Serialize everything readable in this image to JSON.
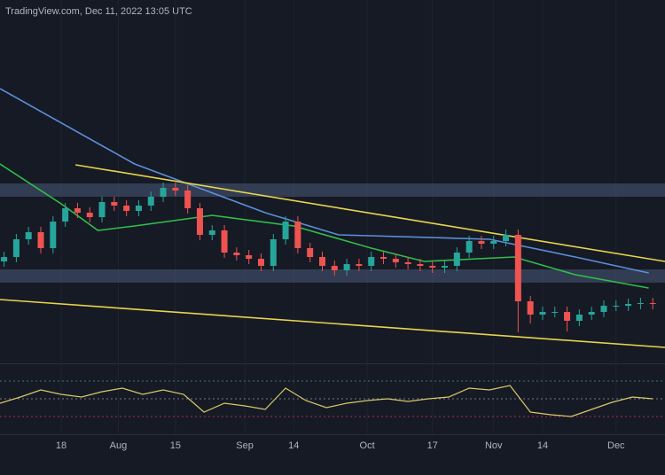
{
  "chart_data": [
    {
      "type": "candlestick",
      "title": "TradingView.com, Dec 11, 2022 13:05 UTC",
      "xlim": [
        0,
        163
      ],
      "ylim": [
        0,
        410
      ],
      "grid": true,
      "xticks": [
        {
          "value": 15,
          "label": "18"
        },
        {
          "value": 29,
          "label": "Aug"
        },
        {
          "value": 43,
          "label": "15"
        },
        {
          "value": 60,
          "label": "Sep"
        },
        {
          "value": 72,
          "label": "14"
        },
        {
          "value": 90,
          "label": "Oct"
        },
        {
          "value": 106,
          "label": "17"
        },
        {
          "value": 121,
          "label": "Nov"
        },
        {
          "value": 133,
          "label": "14"
        },
        {
          "value": 151,
          "label": "Dec"
        }
      ],
      "up_color": "#26a69a",
      "down_color": "#ef5350",
      "x": [
        1,
        4,
        7,
        10,
        13,
        16,
        19,
        22,
        25,
        28,
        31,
        34,
        37,
        40,
        43,
        46,
        49,
        52,
        55,
        58,
        61,
        64,
        67,
        70,
        73,
        76,
        79,
        82,
        85,
        88,
        91,
        94,
        97,
        100,
        103,
        106,
        109,
        112,
        115,
        118,
        121,
        124,
        127,
        130,
        133,
        136,
        139,
        142,
        145,
        148,
        151,
        154,
        157,
        160
      ],
      "open": [
        115,
        120,
        140,
        148,
        130,
        160,
        175,
        170,
        165,
        182,
        178,
        172,
        178,
        188,
        198,
        195,
        175,
        145,
        150,
        125,
        122,
        118,
        110,
        140,
        160,
        130,
        120,
        110,
        105,
        112,
        110,
        120,
        118,
        114,
        112,
        110,
        108,
        110,
        125,
        138,
        135,
        138,
        145,
        70,
        55,
        58,
        58,
        48,
        55,
        58,
        65,
        65,
        67,
        68
      ],
      "high": [
        126,
        146,
        154,
        154,
        166,
        181,
        181,
        176,
        188,
        188,
        184,
        184,
        194,
        204,
        204,
        201,
        181,
        156,
        156,
        131,
        128,
        124,
        146,
        166,
        166,
        136,
        126,
        116,
        118,
        118,
        126,
        126,
        124,
        120,
        118,
        116,
        116,
        131,
        144,
        144,
        144,
        151,
        151,
        76,
        64,
        64,
        64,
        61,
        64,
        71,
        71,
        73,
        74,
        74
      ],
      "low": [
        109,
        114,
        134,
        124,
        124,
        154,
        164,
        159,
        159,
        172,
        166,
        166,
        172,
        182,
        189,
        169,
        139,
        139,
        119,
        116,
        112,
        104,
        104,
        134,
        124,
        114,
        104,
        99,
        99,
        104,
        104,
        112,
        108,
        106,
        104,
        102,
        102,
        104,
        119,
        129,
        129,
        132,
        35,
        45,
        49,
        52,
        36,
        42,
        49,
        52,
        59,
        59,
        61,
        61
      ],
      "close": [
        120,
        140,
        148,
        130,
        160,
        175,
        170,
        165,
        182,
        178,
        172,
        178,
        188,
        198,
        195,
        175,
        145,
        150,
        125,
        122,
        118,
        110,
        140,
        160,
        130,
        120,
        110,
        105,
        112,
        110,
        120,
        118,
        114,
        112,
        110,
        108,
        110,
        125,
        138,
        135,
        138,
        145,
        70,
        55,
        58,
        58,
        48,
        55,
        58,
        65,
        65,
        67,
        68,
        67
      ],
      "lines": [
        {
          "color": "#5b8fd9",
          "x": [
            0,
            33,
            65,
            83,
            120,
            141,
            159
          ],
          "values": [
            310,
            225,
            170,
            145,
            140,
            120,
            102
          ]
        },
        {
          "color": "#2fbf4a",
          "x": [
            0,
            15,
            24,
            33,
            52,
            72,
            91,
            104,
            117,
            126,
            141,
            159
          ],
          "values": [
            225,
            180,
            150,
            155,
            167,
            155,
            130,
            115,
            118,
            120,
            100,
            85
          ]
        }
      ],
      "trendlines": [
        {
          "color": "#e8d44d",
          "x": [
            18.5,
            163
          ],
          "values": [
            224,
            115
          ]
        },
        {
          "color": "#e8d44d",
          "x": [
            0,
            163
          ],
          "values": [
            72,
            18
          ]
        }
      ],
      "zones": [
        {
          "color": "#4a5a78",
          "from": 188,
          "to": 203
        },
        {
          "color": "#4a5a78",
          "from": 91,
          "to": 106
        }
      ]
    },
    {
      "type": "line",
      "xlim": [
        0,
        163
      ],
      "ylim": [
        10,
        90
      ],
      "levels": [
        70,
        50,
        30
      ],
      "level_colors": [
        "#2e7d6f",
        "#787b86",
        "#a8334a"
      ],
      "color": "#d8c86a",
      "x": [
        0,
        5,
        10,
        15,
        20,
        25,
        30,
        35,
        40,
        45,
        50,
        55,
        60,
        65,
        70,
        75,
        80,
        85,
        90,
        95,
        100,
        105,
        110,
        115,
        120,
        125,
        130,
        135,
        140,
        145,
        150,
        155,
        160
      ],
      "values": [
        45,
        52,
        60,
        55,
        52,
        58,
        62,
        55,
        60,
        55,
        35,
        45,
        42,
        38,
        62,
        48,
        40,
        45,
        48,
        50,
        47,
        50,
        52,
        62,
        60,
        65,
        35,
        32,
        30,
        38,
        46,
        52,
        50
      ]
    }
  ]
}
